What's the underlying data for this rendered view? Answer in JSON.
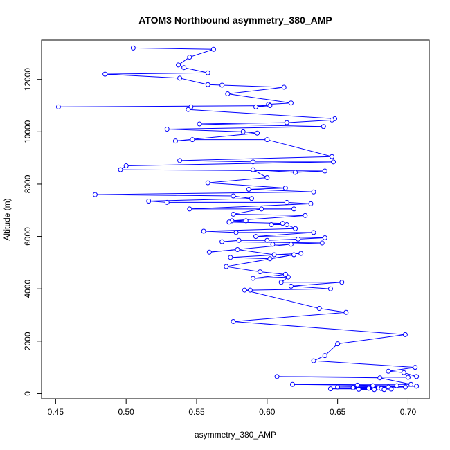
{
  "chart_data": {
    "type": "line",
    "title": "ATOM3 Northbound asymmetry_380_AMP",
    "xlabel": "asymmetry_380_AMP",
    "ylabel": "Altitude (m)",
    "xlim": [
      0.44,
      0.715
    ],
    "ylim": [
      -200,
      13500
    ],
    "x_ticks": [
      0.45,
      0.5,
      0.55,
      0.6,
      0.65,
      0.7
    ],
    "x_tick_labels": [
      "0.45",
      "0.50",
      "0.55",
      "0.60",
      "0.65",
      "0.70"
    ],
    "y_ticks": [
      0,
      2000,
      4000,
      6000,
      8000,
      10000,
      12000
    ],
    "y_tick_labels": [
      "0",
      "2000",
      "4000",
      "6000",
      "8000",
      "10000",
      "12000"
    ],
    "grid": false,
    "series": [
      {
        "color": "#0000ff",
        "marker": "open-circle",
        "points": [
          [
            0.505,
            13200
          ],
          [
            0.562,
            13150
          ],
          [
            0.545,
            12850
          ],
          [
            0.537,
            12550
          ],
          [
            0.541,
            12450
          ],
          [
            0.558,
            12250
          ],
          [
            0.485,
            12200
          ],
          [
            0.538,
            12050
          ],
          [
            0.558,
            11800
          ],
          [
            0.568,
            11780
          ],
          [
            0.612,
            11700
          ],
          [
            0.572,
            11450
          ],
          [
            0.617,
            11100
          ],
          [
            0.601,
            11050
          ],
          [
            0.592,
            10950
          ],
          [
            0.602,
            11000
          ],
          [
            0.452,
            10950
          ],
          [
            0.546,
            10950
          ],
          [
            0.544,
            10850
          ],
          [
            0.648,
            10500
          ],
          [
            0.646,
            10450
          ],
          [
            0.614,
            10350
          ],
          [
            0.552,
            10300
          ],
          [
            0.64,
            10200
          ],
          [
            0.529,
            10100
          ],
          [
            0.583,
            10000
          ],
          [
            0.593,
            9950
          ],
          [
            0.535,
            9650
          ],
          [
            0.547,
            9700
          ],
          [
            0.6,
            9700
          ],
          [
            0.646,
            9050
          ],
          [
            0.538,
            8900
          ],
          [
            0.59,
            8850
          ],
          [
            0.647,
            8850
          ],
          [
            0.5,
            8700
          ],
          [
            0.496,
            8550
          ],
          [
            0.641,
            8500
          ],
          [
            0.62,
            8450
          ],
          [
            0.59,
            8550
          ],
          [
            0.6,
            8250
          ],
          [
            0.558,
            8050
          ],
          [
            0.613,
            7850
          ],
          [
            0.587,
            7800
          ],
          [
            0.633,
            7700
          ],
          [
            0.478,
            7600
          ],
          [
            0.576,
            7550
          ],
          [
            0.589,
            7450
          ],
          [
            0.516,
            7350
          ],
          [
            0.529,
            7300
          ],
          [
            0.614,
            7300
          ],
          [
            0.631,
            7250
          ],
          [
            0.545,
            7050
          ],
          [
            0.619,
            7050
          ],
          [
            0.596,
            7050
          ],
          [
            0.576,
            6850
          ],
          [
            0.627,
            6800
          ],
          [
            0.575,
            6600
          ],
          [
            0.585,
            6600
          ],
          [
            0.573,
            6550
          ],
          [
            0.611,
            6500
          ],
          [
            0.603,
            6450
          ],
          [
            0.614,
            6450
          ],
          [
            0.62,
            6300
          ],
          [
            0.555,
            6200
          ],
          [
            0.578,
            6150
          ],
          [
            0.633,
            6150
          ],
          [
            0.592,
            6000
          ],
          [
            0.641,
            5950
          ],
          [
            0.622,
            5900
          ],
          [
            0.6,
            5850
          ],
          [
            0.58,
            5850
          ],
          [
            0.568,
            5800
          ],
          [
            0.639,
            5750
          ],
          [
            0.604,
            5700
          ],
          [
            0.617,
            5700
          ],
          [
            0.559,
            5400
          ],
          [
            0.579,
            5500
          ],
          [
            0.605,
            5300
          ],
          [
            0.624,
            5350
          ],
          [
            0.574,
            5200
          ],
          [
            0.602,
            5150
          ],
          [
            0.619,
            5300
          ],
          [
            0.571,
            4850
          ],
          [
            0.595,
            4650
          ],
          [
            0.613,
            4550
          ],
          [
            0.59,
            4400
          ],
          [
            0.615,
            4450
          ],
          [
            0.61,
            4250
          ],
          [
            0.653,
            4250
          ],
          [
            0.617,
            4100
          ],
          [
            0.645,
            4000
          ],
          [
            0.588,
            3950
          ],
          [
            0.584,
            3950
          ],
          [
            0.637,
            3250
          ],
          [
            0.656,
            3100
          ],
          [
            0.576,
            2750
          ],
          [
            0.698,
            2250
          ],
          [
            0.65,
            1900
          ],
          [
            0.641,
            1450
          ],
          [
            0.633,
            1250
          ],
          [
            0.705,
            1000
          ],
          [
            0.686,
            850
          ],
          [
            0.697,
            800
          ],
          [
            0.706,
            650
          ],
          [
            0.7,
            620
          ],
          [
            0.607,
            650
          ],
          [
            0.68,
            600
          ],
          [
            0.702,
            350
          ],
          [
            0.618,
            350
          ],
          [
            0.664,
            320
          ],
          [
            0.692,
            300
          ],
          [
            0.675,
            300
          ],
          [
            0.706,
            280
          ],
          [
            0.65,
            250
          ],
          [
            0.686,
            250
          ],
          [
            0.698,
            250
          ],
          [
            0.661,
            220
          ],
          [
            0.679,
            210
          ],
          [
            0.672,
            200
          ],
          [
            0.681,
            190
          ],
          [
            0.645,
            180
          ],
          [
            0.688,
            170
          ],
          [
            0.665,
            160
          ],
          [
            0.676,
            150
          ],
          [
            0.683,
            150
          ]
        ]
      }
    ]
  }
}
